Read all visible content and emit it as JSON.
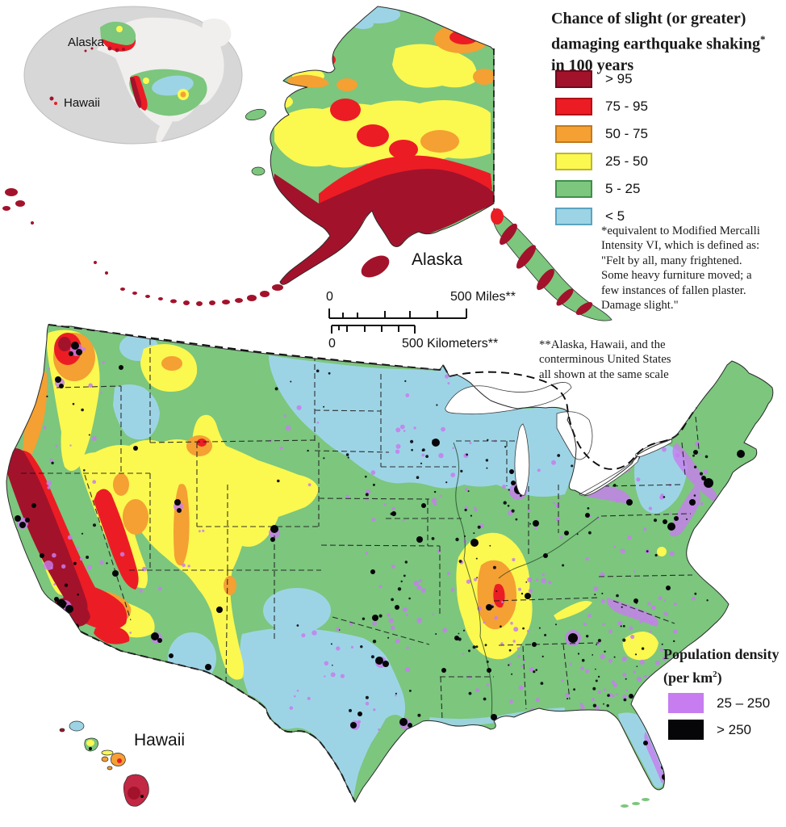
{
  "figure": {
    "type": "seismic-hazard-map",
    "regions_shown": [
      "Alaska",
      "Hawaii",
      "conterminous United States"
    ]
  },
  "palette": {
    "darkred": "#A3122B",
    "red": "#EC1C24",
    "orange": "#F4A033",
    "yellow": "#FBF850",
    "green": "#7CC67E",
    "blue": "#9DD4E5",
    "purple": "#C77DEF",
    "black": "#060609",
    "crimson": "#C22743",
    "insetwater": "#D7D7D7",
    "insetland": "#F0EFED",
    "outline": "#2A2A2A"
  },
  "inset": {
    "alaska_label": "Alaska",
    "hawaii_label": "Hawaii"
  },
  "alaska": {
    "label": "Alaska"
  },
  "hawaii": {
    "label": "Hawaii"
  },
  "hazard_legend": {
    "title_line1": "Chance of slight (or greater)",
    "title_line2": "damaging earthquake shaking",
    "title_sup": "*",
    "title_line3": "in 100 years",
    "items": [
      {
        "label": "> 95",
        "color": "#A3122B",
        "border": "#6E0B1D"
      },
      {
        "label": "75 - 95",
        "color": "#EC1C24",
        "border": "#B01218"
      },
      {
        "label": "50 - 75",
        "color": "#F4A033",
        "border": "#C07A1E"
      },
      {
        "label": "25 - 50",
        "color": "#FBF850",
        "border": "#BDB62E"
      },
      {
        "label": "5 - 25",
        "color": "#7CC67E",
        "border": "#3F8F4C"
      },
      {
        "label": "< 5",
        "color": "#9DD4E5",
        "border": "#5BA3C0"
      }
    ],
    "footnote_lines": [
      "*equivalent to Modified Mercalli",
      "Intensity VI, which is defined as:",
      "\"Felt by all, many frightened.",
      "Some heavy furniture moved; a",
      "few instances of fallen plaster.",
      "Damage slight.\""
    ]
  },
  "scale_bar": {
    "miles_start": "0",
    "miles_end": "500 Miles**",
    "km_start": "0",
    "km_end": "500 Kilometers**"
  },
  "scale_note_lines": [
    "**Alaska, Hawaii, and the",
    "conterminous United States",
    "all shown at the same scale"
  ],
  "population_legend": {
    "title": "Population density",
    "unit_prefix": "(per km",
    "unit_sup": "2",
    "unit_suffix": ")",
    "items": [
      {
        "label": "25 – 250",
        "color": "#C77DEF"
      },
      {
        "label": "> 250",
        "color": "#060609"
      }
    ]
  }
}
